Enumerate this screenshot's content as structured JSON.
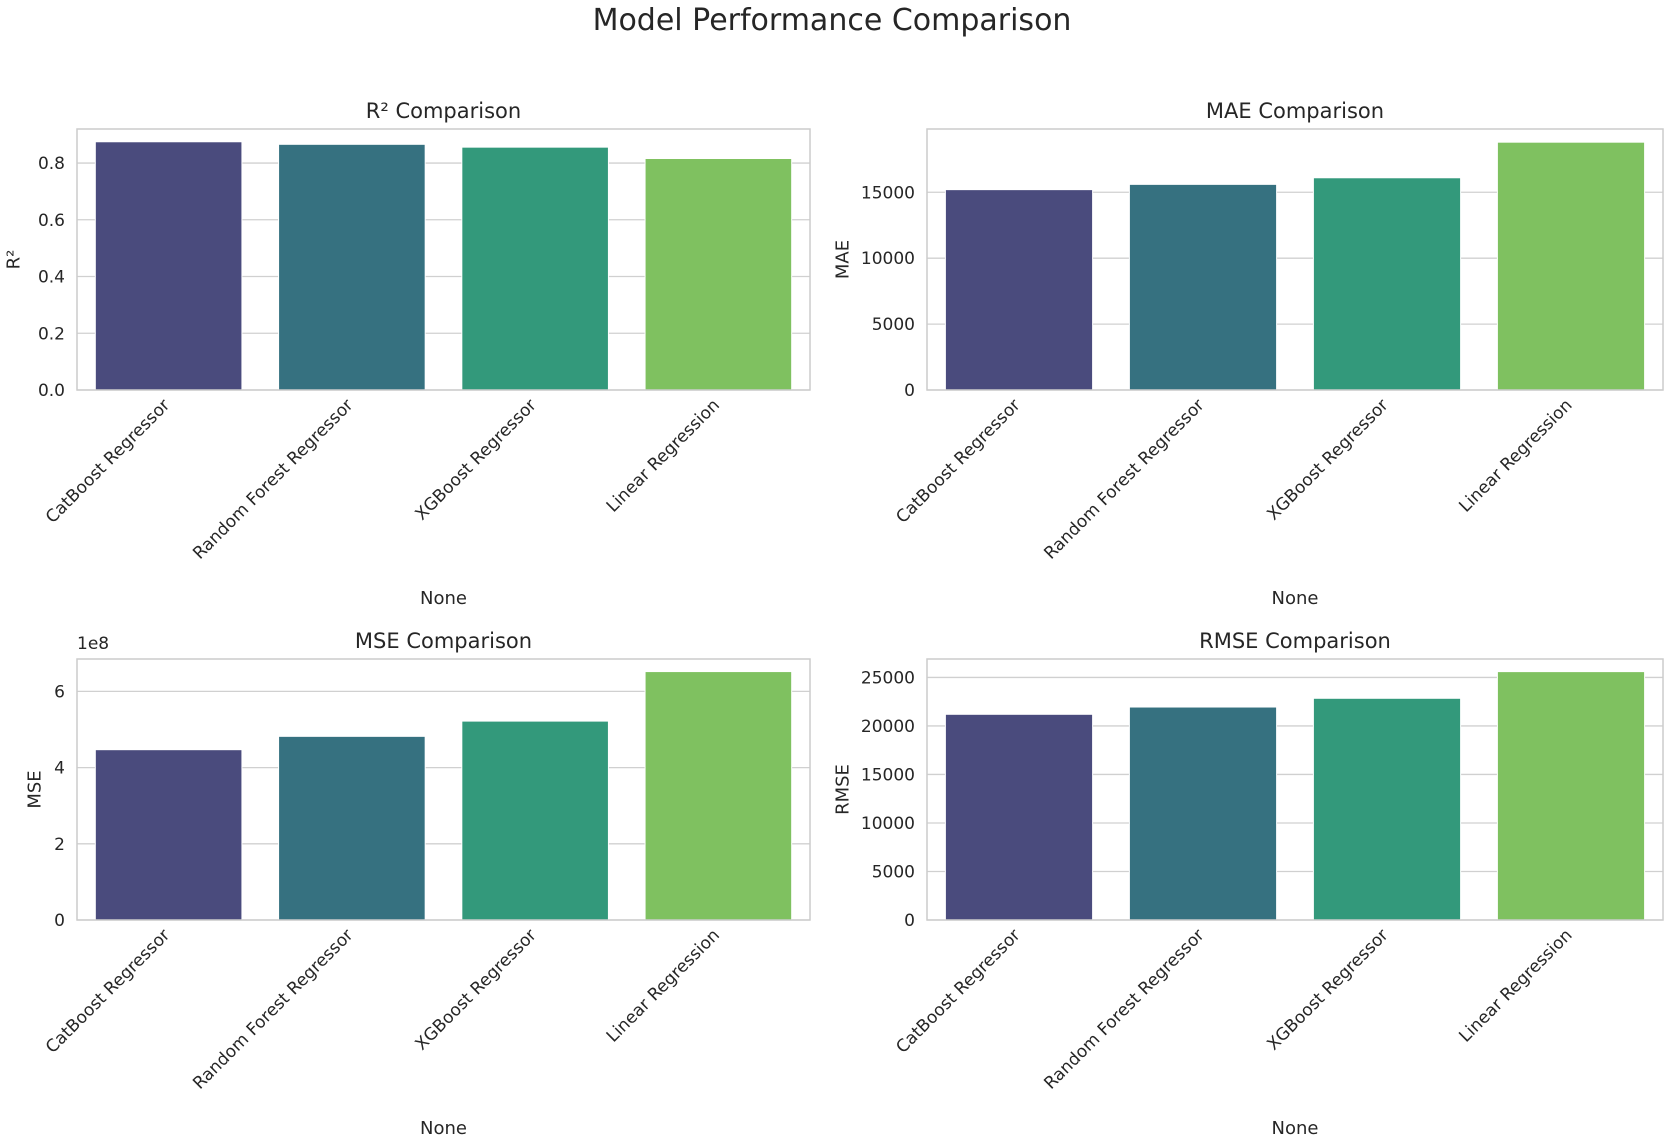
{
  "figure": {
    "title": "Model Performance Comparison"
  },
  "chart_data": [
    {
      "type": "bar",
      "title": "R² Comparison",
      "xlabel": "None",
      "ylabel": "R²",
      "categories": [
        "CatBoost Regressor",
        "Random Forest Regressor",
        "XGBoost Regressor",
        "Linear Regression"
      ],
      "values": [
        0.875,
        0.866,
        0.856,
        0.816
      ],
      "ylim": [
        0,
        0.92
      ],
      "yticks": [
        0.0,
        0.2,
        0.4,
        0.6,
        0.8
      ],
      "ytick_labels": [
        "0.0",
        "0.2",
        "0.4",
        "0.6",
        "0.8"
      ],
      "offset_text": "",
      "colors": [
        "#4a4b7d",
        "#367180",
        "#33997b",
        "#7fc160"
      ],
      "grid": true
    },
    {
      "type": "bar",
      "title": "MAE Comparison",
      "xlabel": "None",
      "ylabel": "MAE",
      "categories": [
        "CatBoost Regressor",
        "Random Forest Regressor",
        "XGBoost Regressor",
        "Linear Regression"
      ],
      "values": [
        15200,
        15600,
        16100,
        18800
      ],
      "ylim": [
        0,
        19800
      ],
      "yticks": [
        0,
        5000,
        10000,
        15000
      ],
      "ytick_labels": [
        "0",
        "5000",
        "10000",
        "15000"
      ],
      "offset_text": "",
      "colors": [
        "#4a4b7d",
        "#367180",
        "#33997b",
        "#7fc160"
      ],
      "grid": true
    },
    {
      "type": "bar",
      "title": "MSE Comparison",
      "xlabel": "None",
      "ylabel": "MSE",
      "categories": [
        "CatBoost Regressor",
        "Random Forest Regressor",
        "XGBoost Regressor",
        "Linear Regression"
      ],
      "values": [
        4.47,
        4.82,
        5.22,
        6.52
      ],
      "ylim": [
        0,
        6.85
      ],
      "yticks": [
        0,
        2,
        4,
        6
      ],
      "ytick_labels": [
        "0",
        "2",
        "4",
        "6"
      ],
      "offset_text": "1e8",
      "colors": [
        "#4a4b7d",
        "#367180",
        "#33997b",
        "#7fc160"
      ],
      "grid": true
    },
    {
      "type": "bar",
      "title": "RMSE Comparison",
      "xlabel": "None",
      "ylabel": "RMSE",
      "categories": [
        "CatBoost Regressor",
        "Random Forest Regressor",
        "XGBoost Regressor",
        "Linear Regression"
      ],
      "values": [
        21200,
        21950,
        22850,
        25600
      ],
      "ylim": [
        0,
        26900
      ],
      "yticks": [
        0,
        5000,
        10000,
        15000,
        20000,
        25000
      ],
      "ytick_labels": [
        "0",
        "5000",
        "10000",
        "15000",
        "20000",
        "25000"
      ],
      "offset_text": "",
      "colors": [
        "#4a4b7d",
        "#367180",
        "#33997b",
        "#7fc160"
      ],
      "grid": true
    }
  ]
}
